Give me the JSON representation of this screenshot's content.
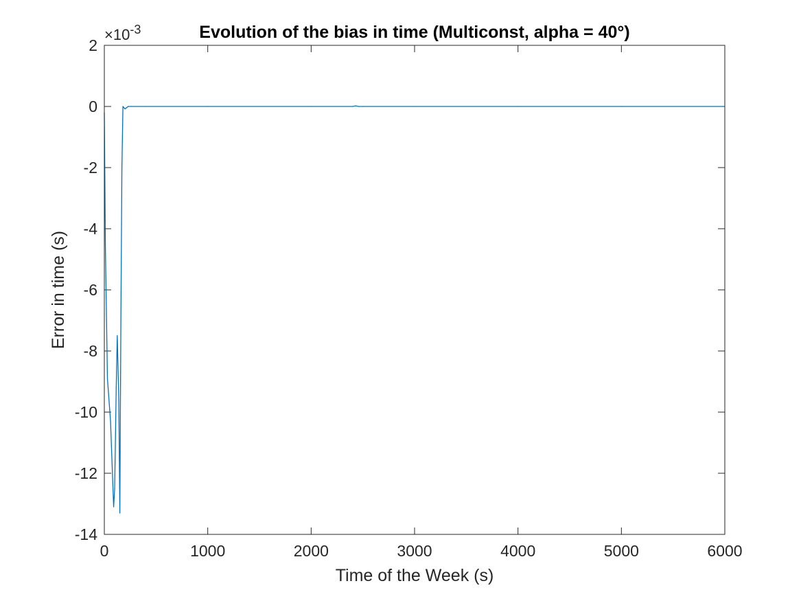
{
  "chart_data": {
    "type": "line",
    "title": "Evolution of the bias in time (Multiconst, alpha = 40°)",
    "xlabel": "Time of the Week (s)",
    "ylabel": "Error in time (s)",
    "y_exponent_base": "×10",
    "y_exponent_power": "-3",
    "xlim": [
      0,
      6000
    ],
    "ylim": [
      -14,
      2
    ],
    "x_ticks": [
      0,
      1000,
      2000,
      3000,
      4000,
      5000,
      6000
    ],
    "x_tick_labels": [
      "0",
      "1000",
      "2000",
      "3000",
      "4000",
      "5000",
      "6000"
    ],
    "y_ticks": [
      2,
      0,
      -2,
      -4,
      -6,
      -8,
      -10,
      -12,
      -14
    ],
    "y_tick_labels": [
      "2",
      "0",
      "-2",
      "-4",
      "-6",
      "-8",
      "-10",
      "-12",
      "-14"
    ],
    "grid": false,
    "legend": "none",
    "series": [
      {
        "color": "#0072BD",
        "x": [
          0,
          10,
          30,
          60,
          90,
          100,
          115,
          125,
          140,
          150,
          160,
          170,
          180,
          200,
          230,
          260,
          400,
          1000,
          2000,
          2400,
          2430,
          2460,
          2500,
          3000,
          4000,
          5000,
          6000
        ],
        "y": [
          -0.2,
          -4.5,
          -8.9,
          -10.3,
          -13.1,
          -12.5,
          -9.2,
          -7.5,
          -9.6,
          -13.3,
          -7.0,
          -2.0,
          0.0,
          -0.08,
          0.0,
          0.0,
          0.0,
          0.0,
          0.0,
          0.0,
          0.02,
          0.0,
          0.0,
          0.0,
          0.0,
          0.0,
          0.0
        ]
      }
    ]
  }
}
